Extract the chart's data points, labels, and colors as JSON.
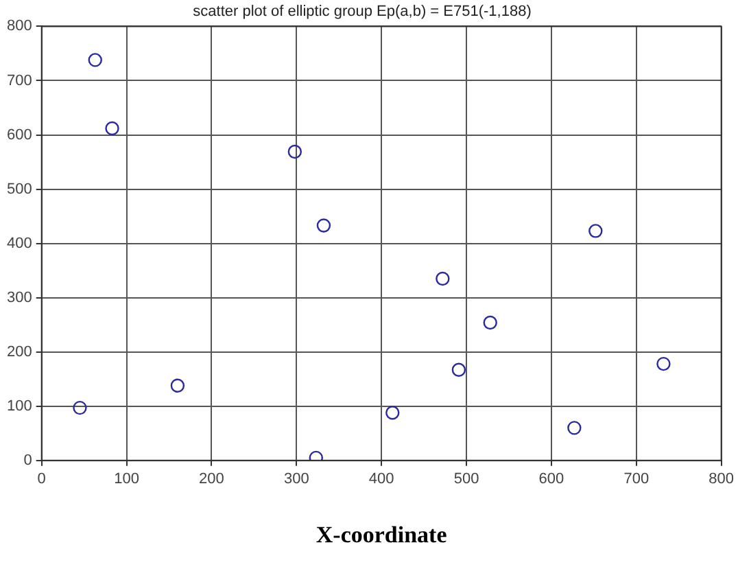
{
  "chart_data": {
    "type": "scatter",
    "title": "scatter plot of elliptic group Ep(a,b) = E751(-1,188)",
    "xlabel": "X-coordinate",
    "x": [
      45,
      160,
      323,
      413,
      472,
      491,
      528,
      627,
      732,
      63,
      83,
      298,
      332,
      652
    ],
    "series": [
      {
        "color": "#2a2aa0",
        "values": [
          97,
          138,
          5,
          88,
          335,
          167,
          254,
          60,
          178,
          738,
          612,
          569,
          433,
          423
        ]
      }
    ],
    "xlim": [
      0,
      800
    ],
    "xticks": [
      0,
      100,
      200,
      300,
      400,
      500,
      600,
      700,
      800
    ],
    "ylim": [
      0,
      800
    ],
    "yticks": [
      0,
      100,
      200,
      300,
      400,
      500,
      600,
      700,
      800
    ],
    "grid": true,
    "marker": "circle",
    "legend": false
  }
}
